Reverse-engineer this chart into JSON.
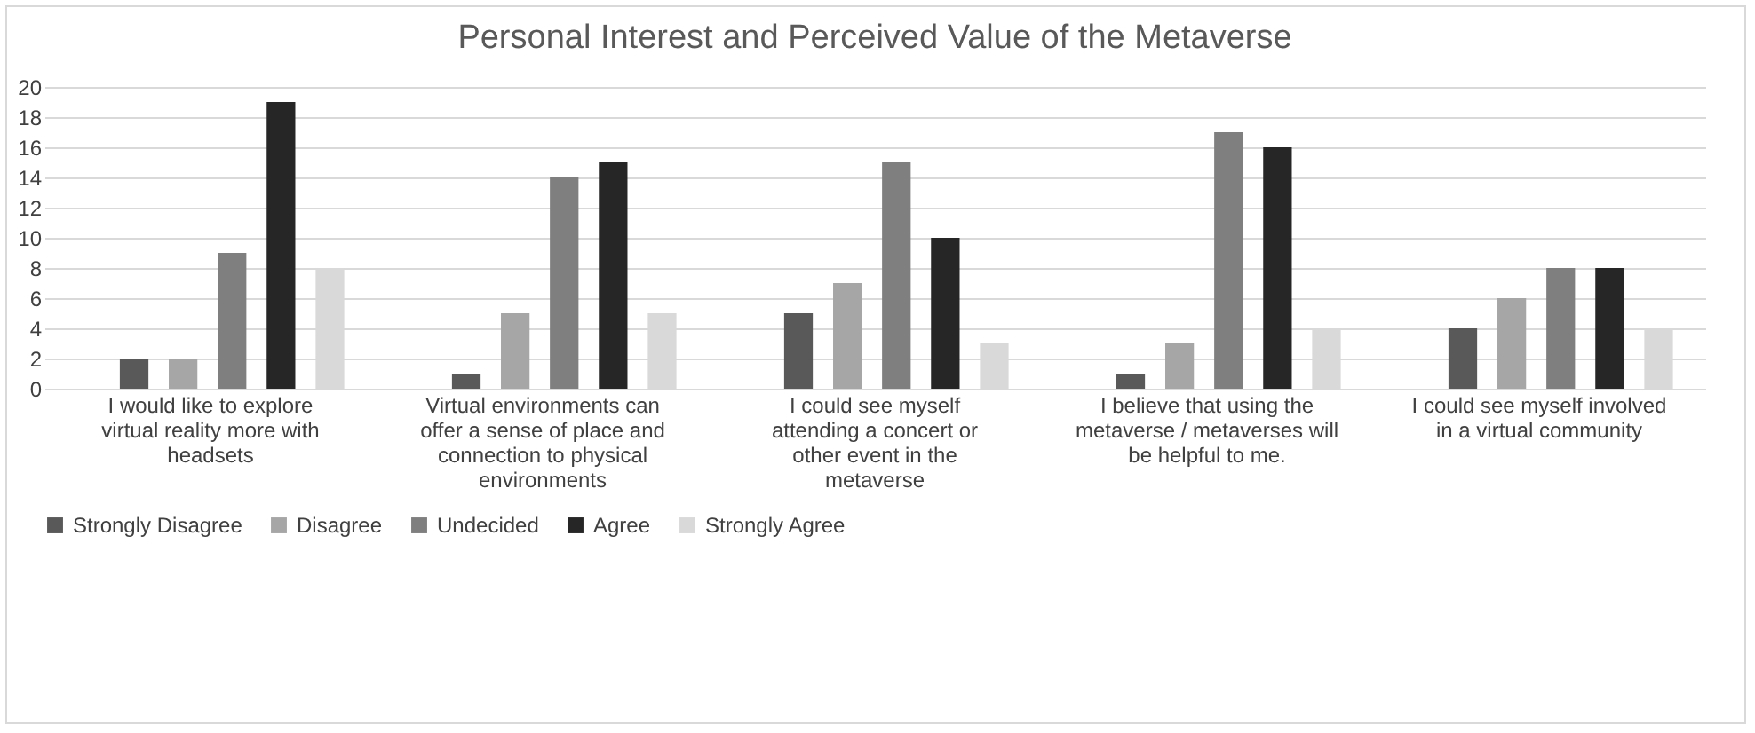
{
  "chart_data": {
    "type": "bar",
    "title": "Personal Interest and Perceived Value of the Metaverse",
    "categories": [
      "I would like to explore virtual reality more with headsets",
      "Virtual environments can offer a sense of place and connection to physical environments",
      "I could see myself attending a concert or other event in the metaverse",
      "I believe that using the metaverse / metaverses will be helpful to me.",
      "I could see myself involved in a virtual community"
    ],
    "series": [
      {
        "name": "Strongly Disagree",
        "color": "#595959",
        "values": [
          2,
          1,
          5,
          1,
          4
        ]
      },
      {
        "name": "Disagree",
        "color": "#a6a6a6",
        "values": [
          2,
          5,
          7,
          3,
          6
        ]
      },
      {
        "name": "Undecided",
        "color": "#7f7f7f",
        "values": [
          9,
          14,
          15,
          17,
          8
        ]
      },
      {
        "name": "Agree",
        "color": "#262626",
        "values": [
          19,
          15,
          10,
          16,
          8
        ]
      },
      {
        "name": "Strongly Agree",
        "color": "#d9d9d9",
        "values": [
          8,
          5,
          3,
          4,
          4
        ]
      }
    ],
    "ylim": [
      0,
      20
    ],
    "yticks": [
      0,
      2,
      4,
      6,
      8,
      10,
      12,
      14,
      16,
      18,
      20
    ],
    "grid": "y",
    "legend": "bottom"
  }
}
